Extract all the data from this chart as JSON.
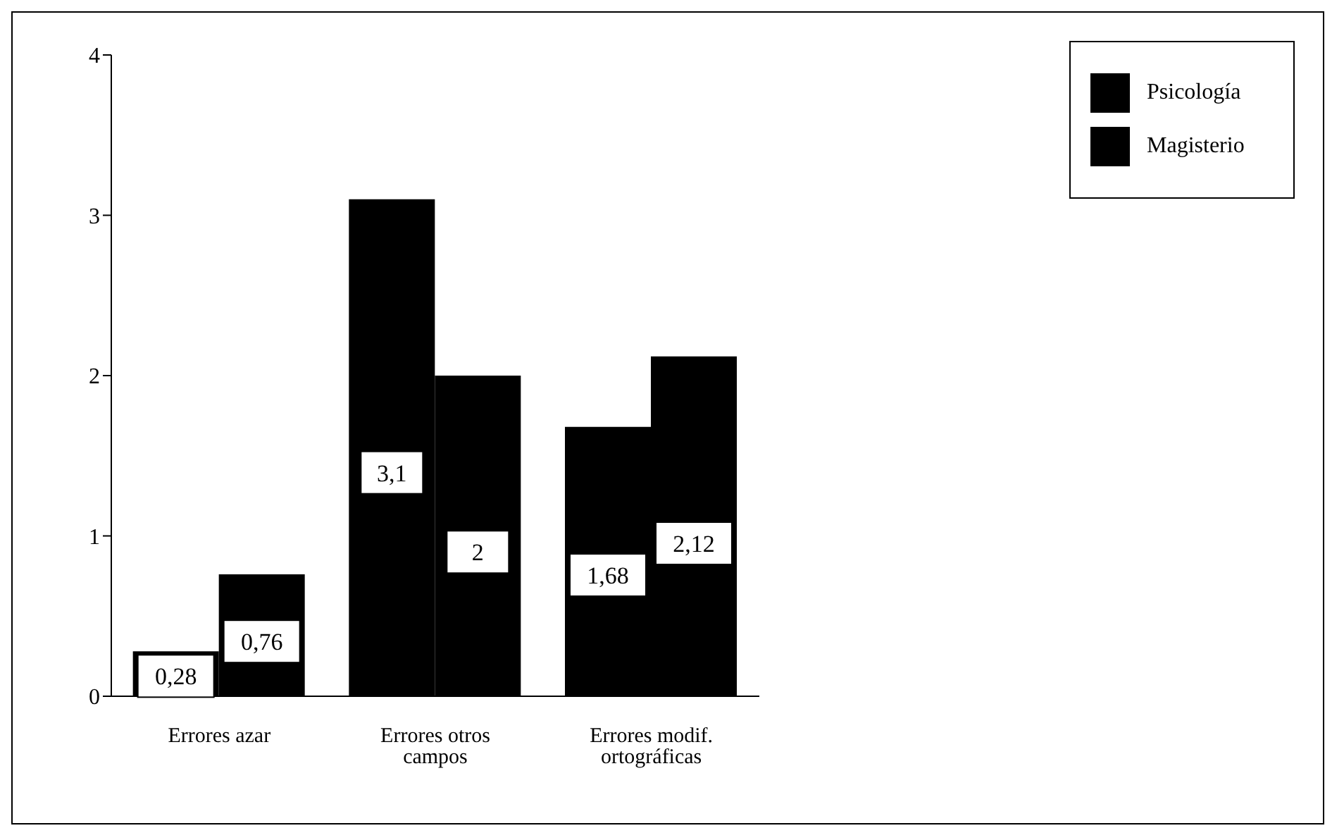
{
  "chart_data": {
    "type": "bar",
    "categories": [
      "Errores azar",
      "Errores otros campos",
      "Errores modif. ortográficas"
    ],
    "series": [
      {
        "name": "Psicología",
        "color": "#000000",
        "values": [
          0.28,
          3.1,
          1.68
        ],
        "value_labels": [
          "0,28",
          "3,1",
          "1,68"
        ]
      },
      {
        "name": "Magisterio",
        "color": "#000000",
        "values": [
          0.76,
          2,
          2.12
        ],
        "value_labels": [
          "0,76",
          "2",
          "2,12"
        ]
      }
    ],
    "ylim": [
      0,
      4
    ],
    "yticks": [
      0,
      1,
      2,
      3,
      4
    ],
    "grid": false,
    "legend": "top right"
  }
}
